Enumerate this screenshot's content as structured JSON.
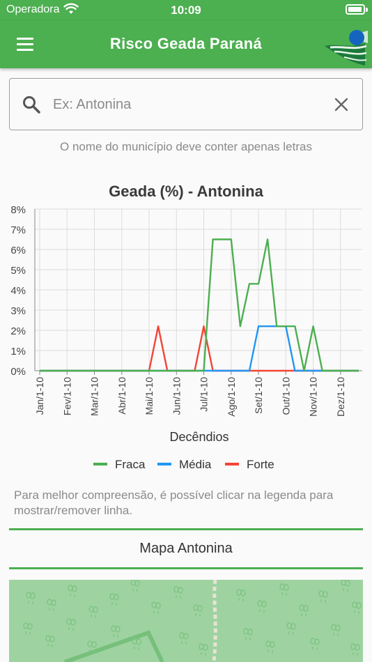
{
  "status_bar": {
    "carrier": "Operadora",
    "time": "10:09"
  },
  "appbar": {
    "title": "Risco Geada Paraná"
  },
  "search": {
    "placeholder": "Ex: Antonina",
    "value": ""
  },
  "helper_text": "O nome do município deve conter apenas letras",
  "colors": {
    "primary": "#4caf50",
    "fraca": "#4caf50",
    "media": "#2196f3",
    "forte": "#f44336"
  },
  "chart_data": {
    "type": "line",
    "title": "Geada (%) - Antonina",
    "xlabel": "Decêndios",
    "ylabel": "",
    "ylim": [
      0,
      8
    ],
    "y_ticks": [
      "0%",
      "1%",
      "2%",
      "3%",
      "4%",
      "5%",
      "6%",
      "7%",
      "8%"
    ],
    "x_ticks": [
      "Jan/1-10",
      "Fev/1-10",
      "Mar/1-10",
      "Abr/1-10",
      "Mai/1-10",
      "Jun/1-10",
      "Jul/1-10",
      "Ago/1-10",
      "Set/1-10",
      "Out/1-10",
      "Nov/1-10",
      "Dez/1-10"
    ],
    "grid": true,
    "legend_position": "bottom",
    "x": [
      1,
      2,
      3,
      4,
      5,
      6,
      7,
      8,
      9,
      10,
      11,
      12,
      13,
      14,
      15,
      16,
      17,
      18,
      19,
      20,
      21,
      22,
      23,
      24,
      25,
      26,
      27,
      28,
      29,
      30,
      31,
      32,
      33,
      34,
      35,
      36
    ],
    "series": [
      {
        "name": "Fraca",
        "color": "#4caf50",
        "values": [
          0,
          0,
          0,
          0,
          0,
          0,
          0,
          0,
          0,
          0,
          0,
          0,
          0,
          0,
          0,
          0,
          0,
          0,
          0,
          6.5,
          6.5,
          6.5,
          2.2,
          4.3,
          4.3,
          6.5,
          2.2,
          2.2,
          2.2,
          0,
          2.2,
          0,
          0,
          0,
          0,
          0
        ]
      },
      {
        "name": "Média",
        "color": "#2196f3",
        "values": [
          0,
          0,
          0,
          0,
          0,
          0,
          0,
          0,
          0,
          0,
          0,
          0,
          0,
          0,
          0,
          0,
          0,
          0,
          0,
          0,
          0,
          0,
          0,
          0,
          2.2,
          2.2,
          2.2,
          2.2,
          0,
          0,
          0,
          0,
          0,
          0,
          0,
          0
        ]
      },
      {
        "name": "Forte",
        "color": "#f44336",
        "values": [
          0,
          0,
          0,
          0,
          0,
          0,
          0,
          0,
          0,
          0,
          0,
          0,
          0,
          2.2,
          0,
          0,
          0,
          0,
          2.2,
          0,
          0,
          0,
          0,
          0,
          0,
          0,
          0,
          0,
          0,
          0,
          0,
          0,
          0,
          0,
          0,
          0
        ]
      }
    ]
  },
  "note_text": "Para melhor compreensão, é possível clicar na legenda para mostrar/remover linha.",
  "map_title": "Mapa Antonina"
}
